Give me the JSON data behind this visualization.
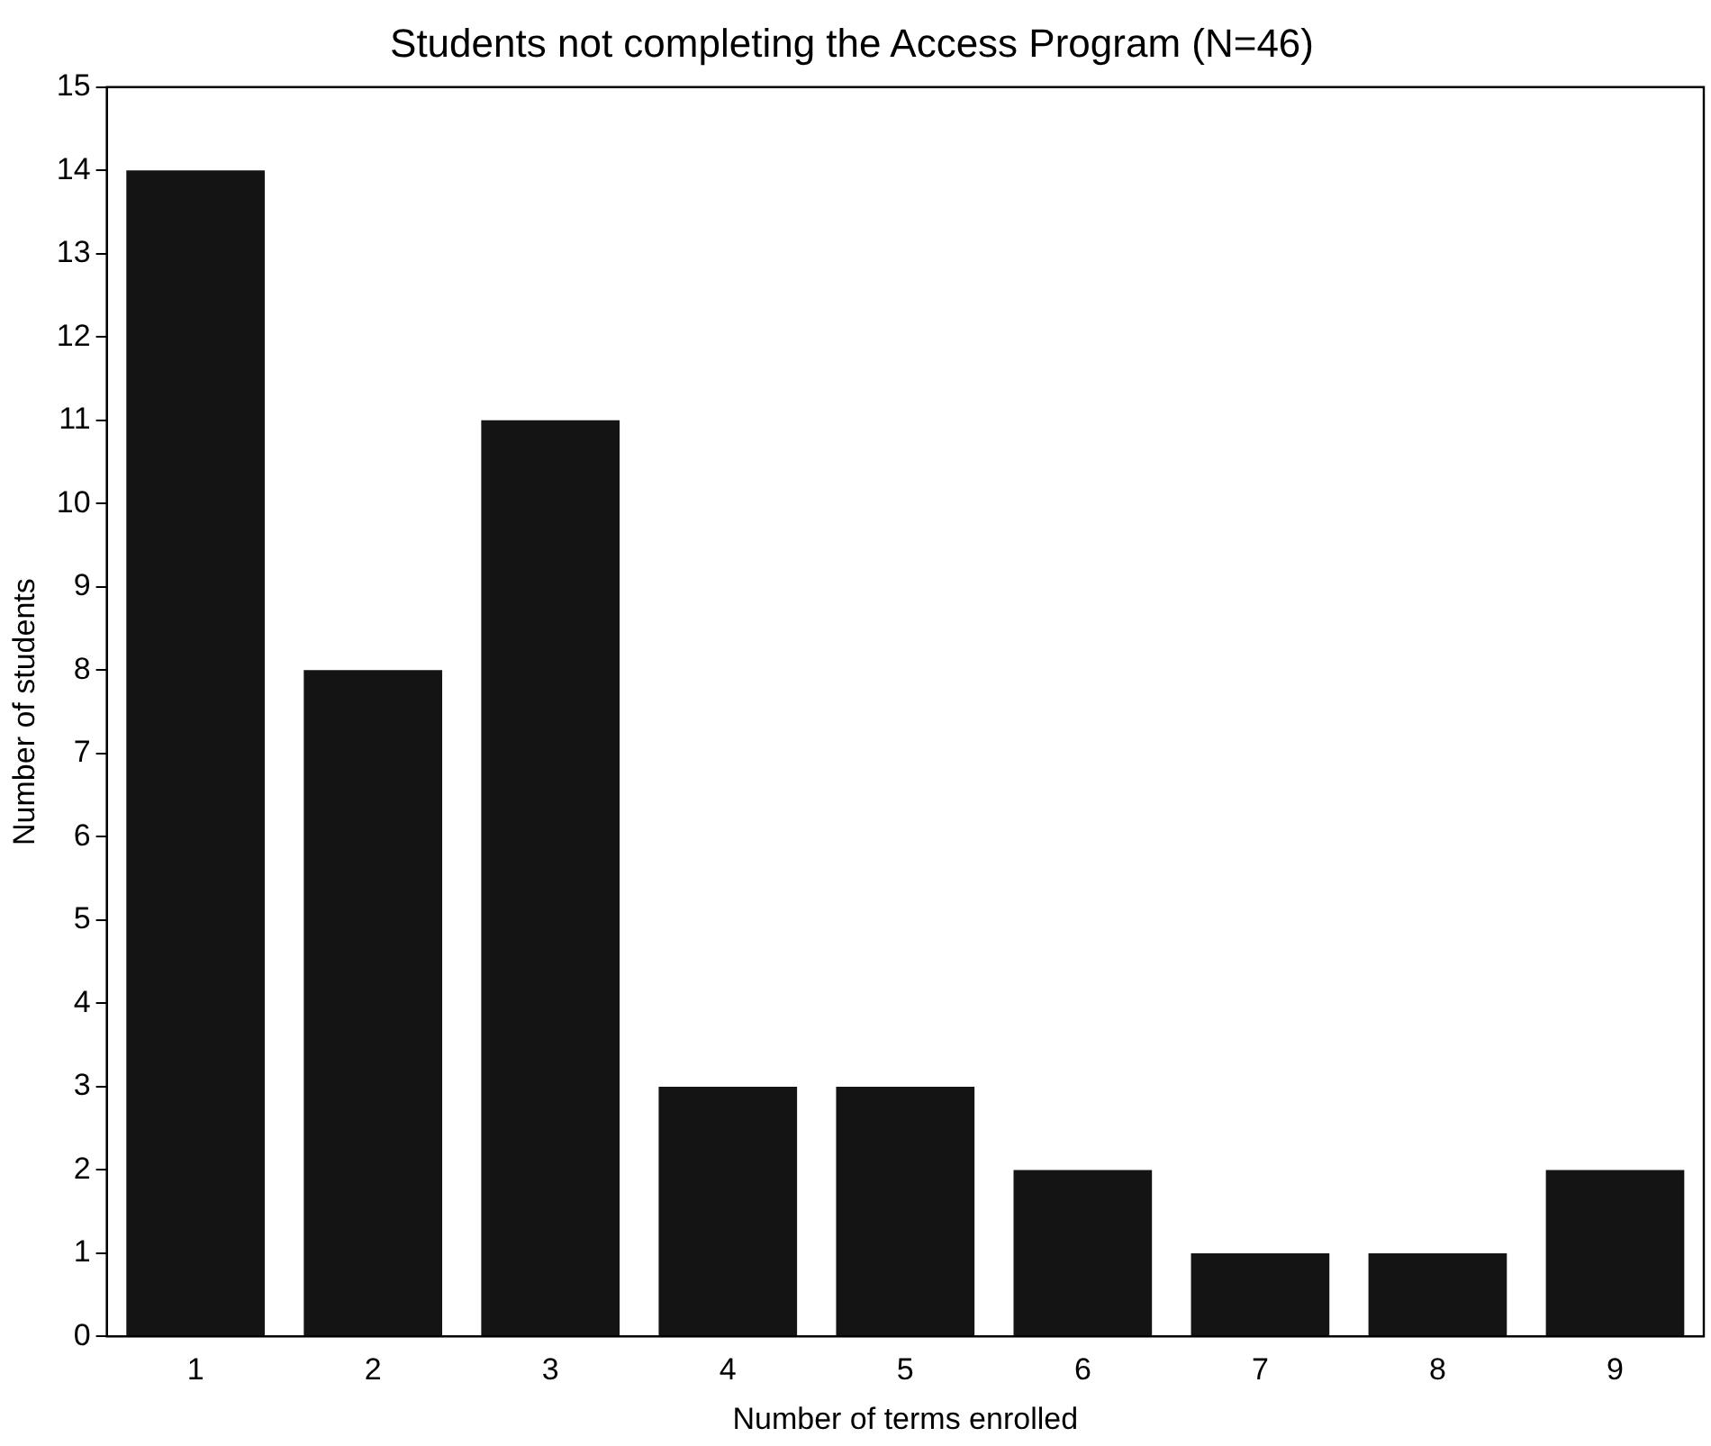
{
  "chart_data": {
    "type": "bar",
    "title": "Students not completing the Access Program (N=46)",
    "xlabel": "Number of terms enrolled",
    "ylabel": "Number of students",
    "categories": [
      "1",
      "2",
      "3",
      "4",
      "5",
      "6",
      "7",
      "8",
      "9"
    ],
    "values": [
      14,
      8,
      11,
      3,
      3,
      2,
      1,
      1,
      2
    ],
    "color": "#141414",
    "ylim": [
      0,
      15
    ],
    "yticks": [
      0,
      1,
      2,
      3,
      4,
      5,
      6,
      7,
      8,
      9,
      10,
      11,
      12,
      13,
      14,
      15
    ],
    "grid": false,
    "legend": false
  }
}
